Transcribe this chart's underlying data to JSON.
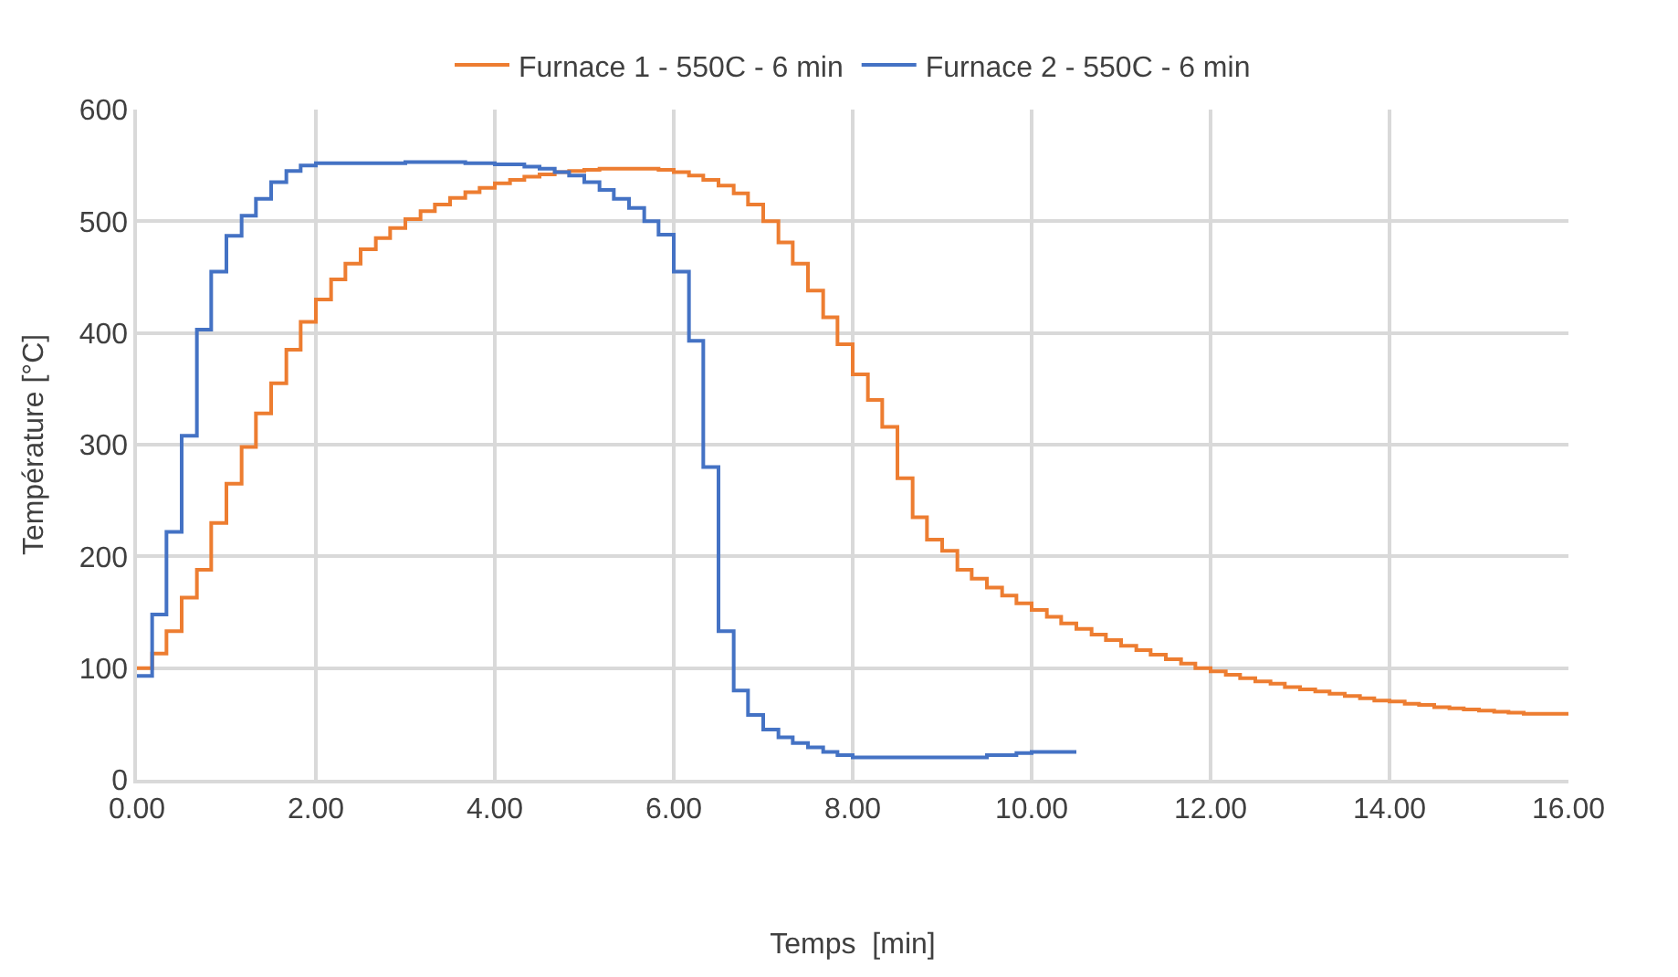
{
  "chart_data": {
    "type": "step",
    "xlabel": "Temps  [min]",
    "ylabel": "Température [°C]",
    "xlim": [
      0,
      16
    ],
    "xticks": [
      {
        "value": 0,
        "label": "0.00"
      },
      {
        "value": 2,
        "label": "2.00"
      },
      {
        "value": 4,
        "label": "4.00"
      },
      {
        "value": 6,
        "label": "6.00"
      },
      {
        "value": 8,
        "label": "8.00"
      },
      {
        "value": 10,
        "label": "10.00"
      },
      {
        "value": 12,
        "label": "12.00"
      },
      {
        "value": 14,
        "label": "14.00"
      },
      {
        "value": 16,
        "label": "16.00"
      }
    ],
    "ylim": [
      0,
      600
    ],
    "yticks": [
      0,
      100,
      200,
      300,
      400,
      500,
      600
    ],
    "grid": true,
    "legend": "top",
    "line_style": "solid",
    "series": [
      {
        "name": "Furnace 1 - 550C - 6 min",
        "color": "#ed7d31",
        "x": [
          0,
          0.17,
          0.33,
          0.5,
          0.67,
          0.83,
          1.0,
          1.17,
          1.33,
          1.5,
          1.67,
          1.83,
          2.0,
          2.17,
          2.33,
          2.5,
          2.67,
          2.83,
          3.0,
          3.17,
          3.33,
          3.5,
          3.67,
          3.83,
          4.0,
          4.17,
          4.33,
          4.5,
          4.67,
          4.83,
          5.0,
          5.17,
          5.33,
          5.5,
          5.67,
          5.83,
          6.0,
          6.17,
          6.33,
          6.5,
          6.67,
          6.83,
          7.0,
          7.17,
          7.33,
          7.5,
          7.67,
          7.83,
          8.0,
          8.17,
          8.33,
          8.5,
          8.67,
          8.83,
          9.0,
          9.17,
          9.33,
          9.5,
          9.67,
          9.83,
          10.0,
          10.17,
          10.33,
          10.5,
          10.67,
          10.83,
          11.0,
          11.17,
          11.33,
          11.5,
          11.67,
          11.83,
          12.0,
          12.17,
          12.33,
          12.5,
          12.67,
          12.83,
          13.0,
          13.17,
          13.33,
          13.5,
          13.67,
          13.83,
          14.0,
          14.17,
          14.33,
          14.5,
          14.67,
          14.83,
          15.0,
          15.17,
          15.33,
          15.5,
          15.67,
          15.83,
          16.0
        ],
        "values": [
          100,
          113,
          133,
          163,
          188,
          230,
          265,
          298,
          328,
          355,
          385,
          410,
          430,
          448,
          462,
          475,
          485,
          494,
          502,
          509,
          515,
          521,
          526,
          530,
          534,
          537,
          540,
          542,
          544,
          545,
          546,
          547,
          547,
          547,
          547,
          546,
          544,
          541,
          537,
          532,
          525,
          515,
          500,
          481,
          462,
          438,
          414,
          390,
          363,
          340,
          316,
          270,
          235,
          215,
          205,
          188,
          180,
          172,
          165,
          158,
          152,
          146,
          140,
          135,
          130,
          125,
          120,
          116,
          112,
          108,
          104,
          100,
          97,
          94,
          91,
          88,
          86,
          83,
          81,
          79,
          77,
          75,
          73,
          71,
          70,
          68,
          67,
          65,
          64,
          63,
          62,
          61,
          60,
          59,
          59,
          59,
          59
        ]
      },
      {
        "name": "Furnace 2 - 550C - 6 min",
        "color": "#4472c4",
        "x": [
          0,
          0.17,
          0.33,
          0.5,
          0.67,
          0.83,
          1.0,
          1.17,
          1.33,
          1.5,
          1.67,
          1.83,
          2.0,
          2.5,
          3.0,
          3.33,
          3.67,
          4.0,
          4.33,
          4.5,
          4.67,
          4.83,
          5.0,
          5.17,
          5.33,
          5.5,
          5.67,
          5.83,
          6.0,
          6.17,
          6.33,
          6.5,
          6.67,
          6.83,
          7.0,
          7.17,
          7.33,
          7.5,
          7.67,
          7.83,
          8.0,
          8.5,
          9.0,
          9.5,
          9.83,
          10.0,
          10.5
        ],
        "values": [
          93,
          148,
          222,
          308,
          403,
          455,
          487,
          505,
          520,
          535,
          545,
          550,
          552,
          552,
          553,
          553,
          552,
          551,
          549,
          547,
          544,
          541,
          535,
          528,
          520,
          512,
          500,
          488,
          455,
          393,
          280,
          133,
          80,
          58,
          45,
          38,
          33,
          29,
          25,
          22,
          20,
          20,
          20,
          22,
          24,
          25,
          25
        ]
      }
    ]
  }
}
